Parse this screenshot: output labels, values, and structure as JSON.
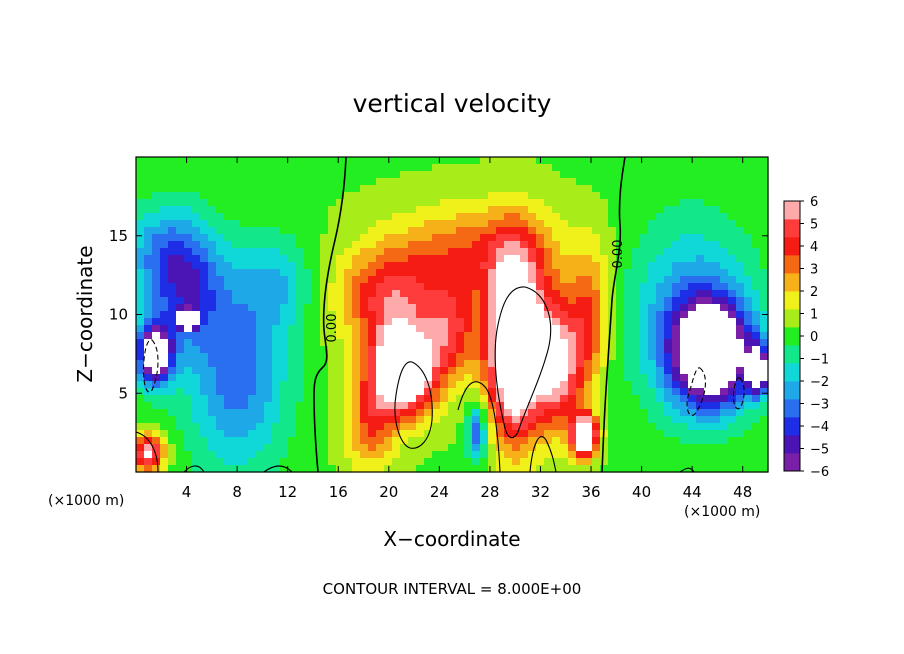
{
  "chart_data": {
    "type": "heatmap",
    "title": "vertical velocity",
    "xlabel": "X−coordinate",
    "ylabel": "Z−coordinate",
    "x_unit": "(×1000 m)",
    "y_unit": "(×1000 m)",
    "xlim": [
      0,
      50
    ],
    "ylim": [
      0,
      20
    ],
    "x_ticks": [
      4,
      8,
      12,
      16,
      20,
      24,
      28,
      32,
      36,
      40,
      44,
      48
    ],
    "y_ticks": [
      5,
      10,
      15
    ],
    "colorbar": {
      "min": -6,
      "max": 6,
      "ticks": [
        6,
        5,
        4,
        3,
        2,
        1,
        0,
        -1,
        -2,
        -3,
        -4,
        -5,
        -6
      ],
      "tick_labels": [
        "6",
        "5",
        "4",
        "3",
        "2",
        "1",
        "0",
        "−1",
        "−2",
        "−3",
        "−4",
        "−5",
        "−6"
      ],
      "colors": [
        "#7a1fa8",
        "#4b14b4",
        "#1e2ee6",
        "#2a6ff0",
        "#1ea8e8",
        "#10d8d8",
        "#12e88a",
        "#22ee22",
        "#a8ec1a",
        "#f0f01a",
        "#f6b018",
        "#f56814",
        "#f51c14",
        "#ff3c3c",
        "#ffaaaa"
      ]
    },
    "contour_label": "0.00",
    "contour_interval_text": "CONTOUR INTERVAL = 8.000E+00",
    "features": [
      {
        "x": 30,
        "y": 8,
        "sx": 2.2,
        "sy": 5.5,
        "v": 10
      },
      {
        "x": 21.2,
        "y": 6.5,
        "sx": 2.6,
        "sy": 2.8,
        "v": 9
      },
      {
        "x": 20,
        "y": 11,
        "sx": 4,
        "sy": 3,
        "v": 4
      },
      {
        "x": 33.5,
        "y": 7,
        "sx": 2,
        "sy": 4,
        "v": 6
      },
      {
        "x": 35.5,
        "y": 2.3,
        "sx": 1,
        "sy": 1.3,
        "v": 9
      },
      {
        "x": 27,
        "y": 14,
        "sx": 7,
        "sy": 3,
        "v": 3
      },
      {
        "x": 25,
        "y": 9,
        "sx": 2,
        "sy": 3,
        "v": 3.5
      },
      {
        "x": 18.5,
        "y": 3,
        "sx": 2,
        "sy": 3,
        "v": 3
      },
      {
        "x": 36,
        "y": 10,
        "sx": 1.5,
        "sy": 4,
        "v": 3
      },
      {
        "x": 27,
        "y": 2.5,
        "sx": 0.8,
        "sy": 1.8,
        "v": -4
      },
      {
        "x": 4,
        "y": 12,
        "sx": 3,
        "sy": 4,
        "v": -4
      },
      {
        "x": 8,
        "y": 6,
        "sx": 4,
        "sy": 6,
        "v": -3.5
      },
      {
        "x": 1.5,
        "y": 7.5,
        "sx": 1.4,
        "sy": 2,
        "v": -8
      },
      {
        "x": 4.1,
        "y": 9.7,
        "sx": 0.7,
        "sy": 0.6,
        "v": -8
      },
      {
        "x": 11,
        "y": 12,
        "sx": 3,
        "sy": 3,
        "v": -2
      },
      {
        "x": 45.5,
        "y": 7.5,
        "sx": 3,
        "sy": 3.2,
        "v": -9
      },
      {
        "x": 44,
        "y": 10,
        "sx": 5,
        "sy": 6,
        "v": -3
      },
      {
        "x": 49.2,
        "y": 6.5,
        "sx": 0.8,
        "sy": 1.5,
        "v": -8
      },
      {
        "x": 1.5,
        "y": 14,
        "sx": 3,
        "sy": 3,
        "v": -2
      },
      {
        "x": 1,
        "y": 1.2,
        "sx": 1.2,
        "sy": 1.2,
        "v": 6
      }
    ]
  }
}
